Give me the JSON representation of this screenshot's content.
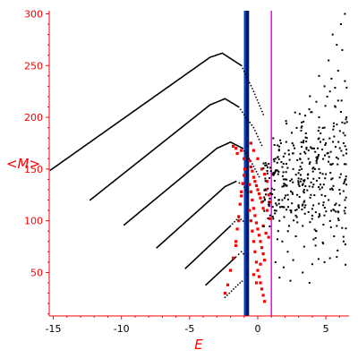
{
  "chart_data": {
    "type": "scatter",
    "xlabel": "E",
    "ylabel": "<M>",
    "xlim": [
      -15.3,
      6.7
    ],
    "ylim": [
      8,
      303
    ],
    "xticks": [
      -15,
      -10,
      -5,
      0,
      5
    ],
    "xtick_labels": [
      "-15",
      "-10",
      "-5",
      "0",
      "5"
    ],
    "yticks": [
      50,
      100,
      150,
      200,
      250,
      300
    ],
    "ytick_labels": [
      "50",
      "100",
      "150",
      "200",
      "250",
      "300"
    ],
    "grid": false,
    "vertical_lines": [
      {
        "x": -0.9,
        "color": "#0044cc"
      },
      {
        "x": -0.75,
        "color": "#001a66"
      },
      {
        "x": 1.0,
        "color": "#ff00ff"
      }
    ],
    "series": [
      {
        "color": "#000000",
        "kind": "curves",
        "curves": [
          [
            [
              -15.2,
              149
            ],
            [
              -3.5,
              258
            ],
            [
              -2.6,
              262
            ],
            [
              -1.2,
              250
            ],
            [
              -0.3,
              225
            ],
            [
              0.5,
              200
            ]
          ],
          [
            [
              -12.3,
              120
            ],
            [
              -3.5,
              212
            ],
            [
              -2.4,
              218
            ],
            [
              -1.4,
              210
            ],
            [
              -0.3,
              190
            ],
            [
              0.4,
              170
            ]
          ],
          [
            [
              -9.8,
              96
            ],
            [
              -3.0,
              170
            ],
            [
              -2.0,
              176
            ],
            [
              -1.1,
              170
            ],
            [
              -0.4,
              155
            ],
            [
              0.2,
              140
            ]
          ],
          [
            [
              -7.4,
              74
            ],
            [
              -2.4,
              133
            ],
            [
              -1.6,
              138
            ],
            [
              -1.1,
              135
            ],
            [
              -0.6,
              125
            ]
          ],
          [
            [
              -5.3,
              54
            ],
            [
              -2.0,
              95
            ],
            [
              -1.4,
              103
            ],
            [
              -0.9,
              98
            ]
          ],
          [
            [
              -3.8,
              38
            ],
            [
              -1.6,
              65
            ],
            [
              -1.2,
              70
            ],
            [
              -0.9,
              66
            ]
          ],
          [
            [
              -2.4,
              26
            ],
            [
              -1.3,
              40
            ],
            [
              -1.0,
              43
            ]
          ]
        ]
      },
      {
        "color": "#ff0000",
        "kind": "cluster",
        "points": [
          [
            -2.4,
            30
          ],
          [
            -2.2,
            38
          ],
          [
            -2.0,
            52
          ],
          [
            -1.8,
            64
          ],
          [
            -1.6,
            80
          ],
          [
            -1.5,
            92
          ],
          [
            -1.4,
            104
          ],
          [
            -1.3,
            116
          ],
          [
            -1.2,
            128
          ],
          [
            -1.1,
            136
          ],
          [
            -1.0,
            144
          ],
          [
            -0.95,
            150
          ],
          [
            -1.6,
            76
          ],
          [
            -1.4,
            100
          ],
          [
            -1.2,
            124
          ],
          [
            -0.6,
            158
          ],
          [
            -0.5,
            152
          ],
          [
            -0.4,
            148
          ],
          [
            -0.3,
            142
          ],
          [
            -0.2,
            138
          ],
          [
            -0.1,
            134
          ],
          [
            0.0,
            130
          ],
          [
            0.1,
            126
          ],
          [
            0.2,
            122
          ],
          [
            0.3,
            118
          ],
          [
            0.4,
            112
          ],
          [
            -0.6,
            135
          ],
          [
            -0.5,
            128
          ],
          [
            -0.4,
            120
          ],
          [
            -0.3,
            112
          ],
          [
            -0.2,
            105
          ],
          [
            -0.1,
            98
          ],
          [
            0.0,
            92
          ],
          [
            0.1,
            86
          ],
          [
            0.2,
            80
          ],
          [
            0.3,
            74
          ],
          [
            0.4,
            68
          ],
          [
            0.5,
            62
          ],
          [
            -0.6,
            110
          ],
          [
            -0.5,
            100
          ],
          [
            -0.4,
            90
          ],
          [
            -0.3,
            80
          ],
          [
            -0.2,
            70
          ],
          [
            -0.1,
            60
          ],
          [
            0.0,
            52
          ],
          [
            0.1,
            46
          ],
          [
            0.2,
            40
          ],
          [
            0.3,
            34
          ],
          [
            0.4,
            28
          ],
          [
            0.5,
            22
          ],
          [
            -0.5,
            175
          ],
          [
            -0.3,
            168
          ],
          [
            0.0,
            160
          ],
          [
            0.3,
            150
          ],
          [
            0.5,
            145
          ],
          [
            0.7,
            138
          ],
          [
            0.6,
            130
          ],
          [
            0.8,
            125
          ],
          [
            0.9,
            118
          ],
          [
            0.7,
            110
          ],
          [
            0.9,
            102
          ],
          [
            -0.3,
            48
          ],
          [
            -0.1,
            40
          ],
          [
            0.2,
            58
          ],
          [
            0.4,
            95
          ],
          [
            0.6,
            88
          ],
          [
            0.8,
            84
          ],
          [
            -1.5,
            165
          ],
          [
            -1.6,
            170
          ],
          [
            -1.8,
            172
          ],
          [
            -1.2,
            168
          ],
          [
            -1.0,
            160
          ]
        ]
      },
      {
        "color": "#000000",
        "kind": "cloud",
        "points": [
          [
            1.2,
            130
          ],
          [
            1.5,
            145
          ],
          [
            1.8,
            120
          ],
          [
            2.1,
            155
          ],
          [
            2.4,
            110
          ],
          [
            2.7,
            170
          ],
          [
            3.0,
            135
          ],
          [
            3.3,
            95
          ],
          [
            3.6,
            180
          ],
          [
            3.9,
            125
          ],
          [
            4.2,
            150
          ],
          [
            4.5,
            200
          ],
          [
            4.8,
            115
          ],
          [
            5.1,
            165
          ],
          [
            5.4,
            140
          ],
          [
            5.7,
            210
          ],
          [
            6.0,
            130
          ],
          [
            6.3,
            175
          ],
          [
            1.3,
            160
          ],
          [
            1.6,
            100
          ],
          [
            1.9,
            140
          ],
          [
            2.2,
            125
          ],
          [
            2.5,
            185
          ],
          [
            2.8,
            105
          ],
          [
            3.1,
            160
          ],
          [
            3.4,
            130
          ],
          [
            3.7,
            145
          ],
          [
            4.0,
            170
          ],
          [
            4.3,
            90
          ],
          [
            4.6,
            135
          ],
          [
            4.9,
            190
          ],
          [
            5.2,
            120
          ],
          [
            5.5,
            155
          ],
          [
            5.8,
            95
          ],
          [
            6.1,
            145
          ],
          [
            6.4,
            120
          ],
          [
            1.4,
            115
          ],
          [
            1.7,
            175
          ],
          [
            2.0,
            135
          ],
          [
            2.3,
            95
          ],
          [
            2.6,
            150
          ],
          [
            2.9,
            125
          ],
          [
            3.2,
            190
          ],
          [
            3.5,
            115
          ],
          [
            3.8,
            155
          ],
          [
            4.1,
            135
          ],
          [
            4.4,
            170
          ],
          [
            4.7,
            125
          ],
          [
            5.0,
            145
          ],
          [
            5.3,
            225
          ],
          [
            5.6,
            110
          ],
          [
            5.9,
            160
          ],
          [
            6.2,
            195
          ],
          [
            6.5,
            135
          ],
          [
            1.1,
            145
          ],
          [
            1.5,
            90
          ],
          [
            2.0,
            165
          ],
          [
            2.5,
            140
          ],
          [
            3.0,
            115
          ],
          [
            3.5,
            165
          ],
          [
            4.0,
            105
          ],
          [
            4.5,
            150
          ],
          [
            5.0,
            175
          ],
          [
            5.5,
            130
          ],
          [
            6.0,
            115
          ],
          [
            6.5,
            165
          ],
          [
            1.8,
            80
          ],
          [
            2.2,
            70
          ],
          [
            2.8,
            85
          ],
          [
            3.4,
            75
          ],
          [
            4.1,
            82
          ],
          [
            4.8,
            78
          ],
          [
            5.6,
            85
          ],
          [
            6.3,
            80
          ],
          [
            1.3,
            60
          ],
          [
            1.9,
            55
          ],
          [
            2.6,
            62
          ],
          [
            3.3,
            50
          ],
          [
            4.0,
            58
          ],
          [
            4.9,
            60
          ],
          [
            5.8,
            65
          ],
          [
            1.6,
            45
          ],
          [
            2.4,
            42
          ],
          [
            3.8,
            40
          ],
          [
            4.5,
            240
          ],
          [
            5.2,
            255
          ],
          [
            5.8,
            270
          ],
          [
            6.1,
            290
          ],
          [
            5.5,
            280
          ],
          [
            6.4,
            300
          ],
          [
            4.9,
            230
          ],
          [
            5.9,
            245
          ],
          [
            6.2,
            265
          ],
          [
            4.3,
            215
          ],
          [
            3.9,
            205
          ],
          [
            5.1,
            220
          ],
          [
            6.4,
            235
          ]
        ]
      }
    ]
  }
}
